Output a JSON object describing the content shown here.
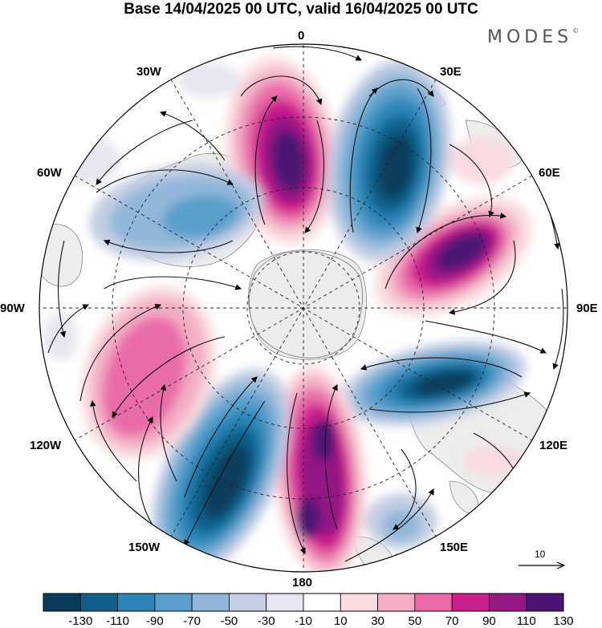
{
  "title": "Base 14/04/2025 00 UTC, valid 16/04/2025 00 UTC",
  "brand": "MODES",
  "brand_mark": "©",
  "longitude_labels": {
    "top": "0",
    "top_left": "30W",
    "top_right": "30E",
    "left_upper": "60W",
    "right_upper": "60E",
    "left": "90W",
    "right": "90E",
    "left_lower": "120W",
    "right_lower": "120E",
    "bottom_left": "150W",
    "bottom_right": "150E",
    "bottom": "180"
  },
  "reference_vector": {
    "label": "10",
    "icon": "arrow-right-icon"
  },
  "colorbar": {
    "ticks": [
      "-130",
      "-110",
      "-90",
      "-70",
      "-50",
      "-30",
      "-10",
      "10",
      "30",
      "50",
      "70",
      "90",
      "110",
      "130"
    ],
    "colors": [
      "#0c3c5c",
      "#11608c",
      "#2c85b8",
      "#5a9fcc",
      "#92b7da",
      "#c4cde4",
      "#e7e6f0",
      "#ffffff",
      "#fadbdf",
      "#f3aec6",
      "#e96ca8",
      "#cb1f8d",
      "#931985",
      "#4c1273"
    ]
  },
  "land_color": "#f0f0f0",
  "map_projection": "south polar stereographic"
}
